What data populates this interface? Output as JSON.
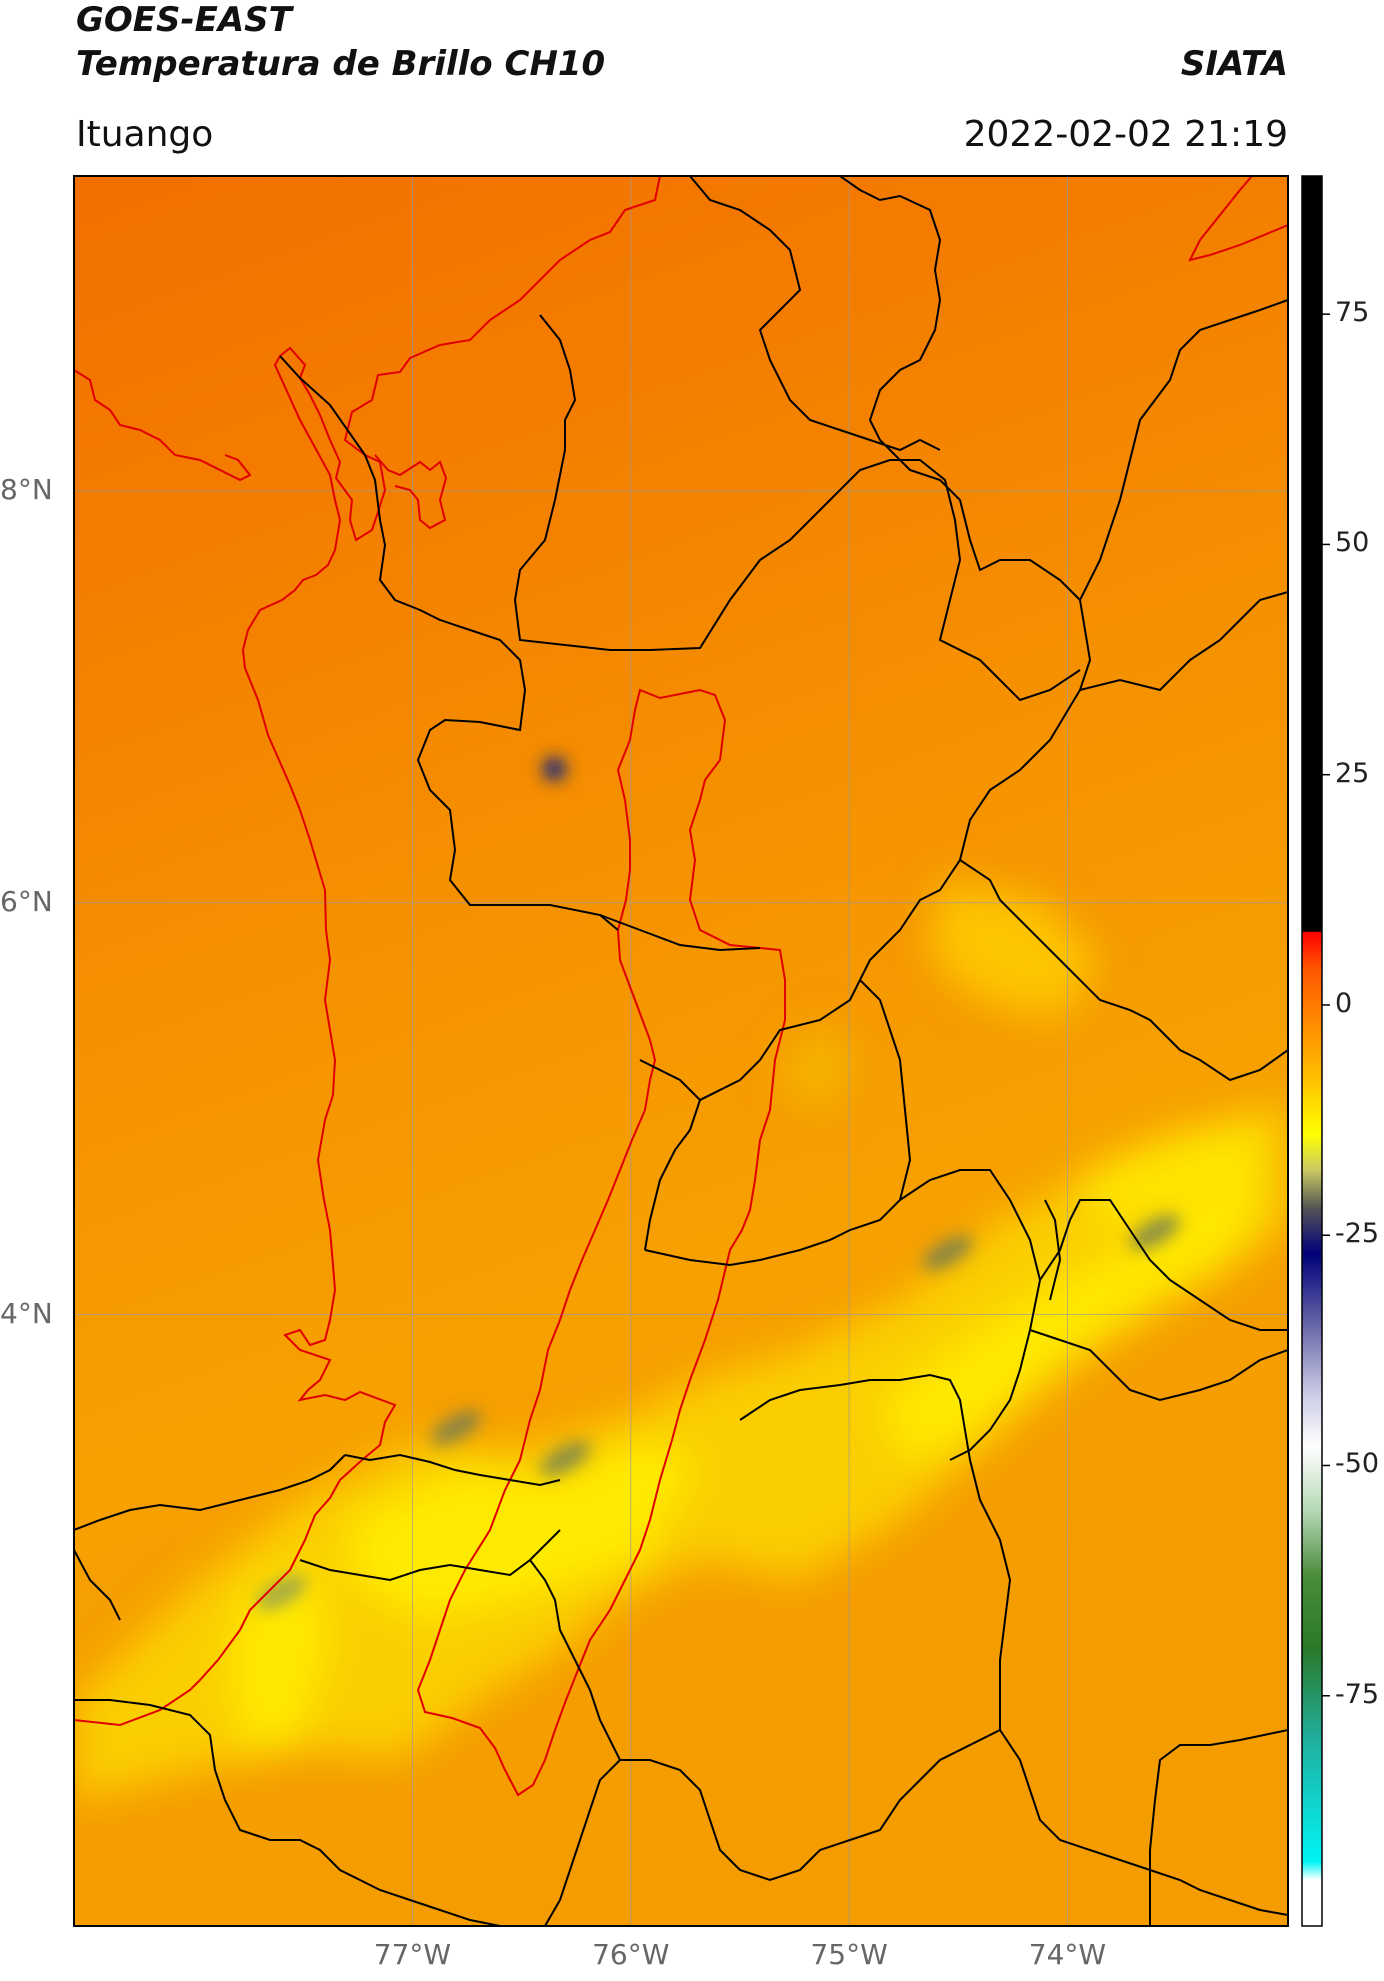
{
  "header": {
    "title_line1": "GOES-EAST",
    "title_line2": "Temperatura de Brillo CH10",
    "org": "SIATA",
    "location": "Ituango",
    "datetime": "2022-02-02 21:19"
  },
  "map": {
    "type": "satellite brightness-temperature map",
    "extent": {
      "lon": [
        -78.55,
        -72.99
      ],
      "lat": [
        1.03,
        9.53
      ]
    },
    "lat_ticks": [
      {
        "value": 8,
        "label": "8°N"
      },
      {
        "value": 6,
        "label": "6°N"
      },
      {
        "value": 4,
        "label": "4°N"
      }
    ],
    "lon_ticks": [
      {
        "value": -77,
        "label": "77°W"
      },
      {
        "value": -76,
        "label": "76°W"
      },
      {
        "value": -75,
        "label": "75°W"
      },
      {
        "value": -74,
        "label": "74°W"
      }
    ],
    "grid": true,
    "colors": {
      "coastline": "#e00000",
      "basin_outline": "#e00000",
      "admin_borders": "#000000",
      "field_dominant": "#f59a00"
    }
  },
  "colorbar": {
    "range": [
      -100,
      90
    ],
    "ticks": [
      {
        "value": 75,
        "label": "75"
      },
      {
        "value": 50,
        "label": "50"
      },
      {
        "value": 25,
        "label": "25"
      },
      {
        "value": 0,
        "label": "0"
      },
      {
        "value": -25,
        "label": "-25"
      },
      {
        "value": -50,
        "label": "-50"
      },
      {
        "value": -75,
        "label": "-75"
      }
    ],
    "stops": [
      {
        "value": 90,
        "color": "#000000"
      },
      {
        "value": 8,
        "color": "#000000"
      },
      {
        "value": 7.9,
        "color": "#ff0000"
      },
      {
        "value": 4,
        "color": "#ff5500"
      },
      {
        "value": -2,
        "color": "#ff8c00"
      },
      {
        "value": -8,
        "color": "#ffc000"
      },
      {
        "value": -14,
        "color": "#ffff00"
      },
      {
        "value": -18,
        "color": "#c8c864"
      },
      {
        "value": -22,
        "color": "#555555"
      },
      {
        "value": -27,
        "color": "#00007a"
      },
      {
        "value": -35,
        "color": "#6a6aaa"
      },
      {
        "value": -42,
        "color": "#c8c8e6"
      },
      {
        "value": -48,
        "color": "#ffffff"
      },
      {
        "value": -55,
        "color": "#b4d8b4"
      },
      {
        "value": -62,
        "color": "#4a8c3a"
      },
      {
        "value": -70,
        "color": "#2a7a2a"
      },
      {
        "value": -80,
        "color": "#20b0a0"
      },
      {
        "value": -93,
        "color": "#00f5f5"
      },
      {
        "value": -95,
        "color": "#ffffff"
      },
      {
        "value": -100,
        "color": "#ffffff"
      }
    ]
  },
  "cold_spots": [
    {
      "lon": -76.35,
      "lat": 6.65,
      "color": "#1a2a7a",
      "label": "convective core"
    },
    {
      "lon": -76.8,
      "lat": 3.45,
      "color": "#6a7a5a",
      "label": "cloud band"
    },
    {
      "lon": -76.3,
      "lat": 3.3,
      "color": "#6a7a5a",
      "label": "cloud band"
    },
    {
      "lon": -74.55,
      "lat": 4.3,
      "color": "#6a7a5a",
      "label": "cloud band"
    },
    {
      "lon": -73.6,
      "lat": 4.4,
      "color": "#6a7a5a",
      "label": "cloud band"
    },
    {
      "lon": -77.6,
      "lat": 2.65,
      "color": "#8a9a5a",
      "label": "cloud band"
    }
  ]
}
